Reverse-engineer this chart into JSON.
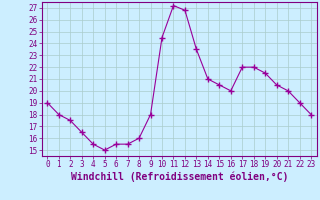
{
  "x": [
    0,
    1,
    2,
    3,
    4,
    5,
    6,
    7,
    8,
    9,
    10,
    11,
    12,
    13,
    14,
    15,
    16,
    17,
    18,
    19,
    20,
    21,
    22,
    23
  ],
  "y": [
    19,
    18,
    17.5,
    16.5,
    15.5,
    15,
    15.5,
    15.5,
    16,
    18,
    24.5,
    27.2,
    26.8,
    23.5,
    21,
    20.5,
    20,
    22,
    22,
    21.5,
    20.5,
    20,
    19,
    18
  ],
  "line_color": "#990099",
  "marker": "+",
  "marker_size": 4,
  "bg_color": "#cceeff",
  "grid_color": "#aacccc",
  "xlabel": "Windchill (Refroidissement éolien,°C)",
  "xlabel_fontsize": 7,
  "ylabel_ticks": [
    15,
    16,
    17,
    18,
    19,
    20,
    21,
    22,
    23,
    24,
    25,
    26,
    27
  ],
  "xlim": [
    -0.5,
    23.5
  ],
  "ylim": [
    14.5,
    27.5
  ],
  "tick_fontsize": 5.5,
  "label_color": "#800080"
}
